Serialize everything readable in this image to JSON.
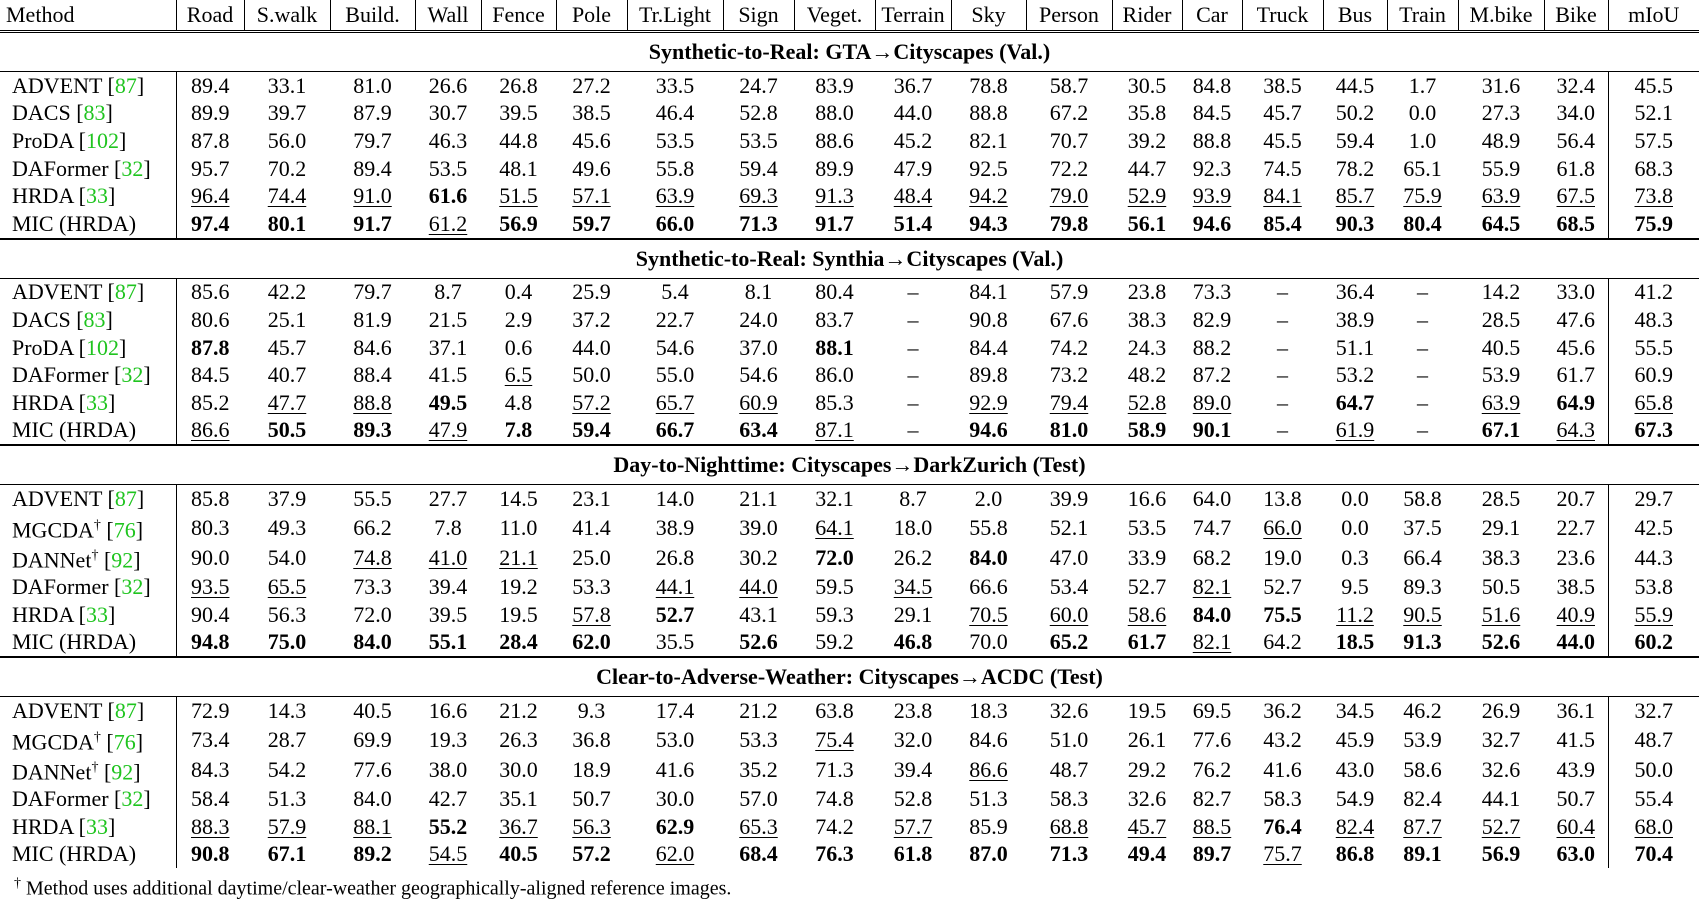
{
  "columns": [
    "Method",
    "Road",
    "S.walk",
    "Build.",
    "Wall",
    "Fence",
    "Pole",
    "Tr.Light",
    "Sign",
    "Veget.",
    "Terrain",
    "Sky",
    "Person",
    "Rider",
    "Car",
    "Truck",
    "Bus",
    "Train",
    "M.bike",
    "Bike",
    "mIoU"
  ],
  "colors": {
    "citation": "#1fc41f",
    "text": "#000000"
  },
  "sections": [
    {
      "title": "Synthetic-to-Real: GTA→Cityscapes (Val.)",
      "rows": [
        {
          "method": "ADVENT",
          "dagger": "",
          "ref": "87",
          "values": [
            "89.4",
            "33.1",
            "81.0",
            "26.6",
            "26.8",
            "27.2",
            "33.5",
            "24.7",
            "83.9",
            "36.7",
            "78.8",
            "58.7",
            "30.5",
            "84.8",
            "38.5",
            "44.5",
            "1.7",
            "31.6",
            "32.4",
            "45.5"
          ],
          "bold": [],
          "underline": []
        },
        {
          "method": "DACS",
          "dagger": "",
          "ref": "83",
          "values": [
            "89.9",
            "39.7",
            "87.9",
            "30.7",
            "39.5",
            "38.5",
            "46.4",
            "52.8",
            "88.0",
            "44.0",
            "88.8",
            "67.2",
            "35.8",
            "84.5",
            "45.7",
            "50.2",
            "0.0",
            "27.3",
            "34.0",
            "52.1"
          ],
          "bold": [],
          "underline": []
        },
        {
          "method": "ProDA",
          "dagger": "",
          "ref": "102",
          "values": [
            "87.8",
            "56.0",
            "79.7",
            "46.3",
            "44.8",
            "45.6",
            "53.5",
            "53.5",
            "88.6",
            "45.2",
            "82.1",
            "70.7",
            "39.2",
            "88.8",
            "45.5",
            "59.4",
            "1.0",
            "48.9",
            "56.4",
            "57.5"
          ],
          "bold": [],
          "underline": []
        },
        {
          "method": "DAFormer",
          "dagger": "",
          "ref": "32",
          "values": [
            "95.7",
            "70.2",
            "89.4",
            "53.5",
            "48.1",
            "49.6",
            "55.8",
            "59.4",
            "89.9",
            "47.9",
            "92.5",
            "72.2",
            "44.7",
            "92.3",
            "74.5",
            "78.2",
            "65.1",
            "55.9",
            "61.8",
            "68.3"
          ],
          "bold": [],
          "underline": []
        },
        {
          "method": "HRDA",
          "dagger": "",
          "ref": "33",
          "values": [
            "96.4",
            "74.4",
            "91.0",
            "61.6",
            "51.5",
            "57.1",
            "63.9",
            "69.3",
            "91.3",
            "48.4",
            "94.2",
            "79.0",
            "52.9",
            "93.9",
            "84.1",
            "85.7",
            "75.9",
            "63.9",
            "67.5",
            "73.8"
          ],
          "bold": [
            3
          ],
          "underline": [
            0,
            1,
            2,
            4,
            5,
            6,
            7,
            8,
            9,
            10,
            11,
            12,
            13,
            14,
            15,
            16,
            17,
            18,
            19
          ]
        },
        {
          "method": "MIC (HRDA)",
          "dagger": "",
          "ref": "",
          "values": [
            "97.4",
            "80.1",
            "91.7",
            "61.2",
            "56.9",
            "59.7",
            "66.0",
            "71.3",
            "91.7",
            "51.4",
            "94.3",
            "79.8",
            "56.1",
            "94.6",
            "85.4",
            "90.3",
            "80.4",
            "64.5",
            "68.5",
            "75.9"
          ],
          "bold": [
            0,
            1,
            2,
            4,
            5,
            6,
            7,
            8,
            9,
            10,
            11,
            12,
            13,
            14,
            15,
            16,
            17,
            18,
            19
          ],
          "underline": [
            3
          ]
        }
      ]
    },
    {
      "title": "Synthetic-to-Real: Synthia→Cityscapes (Val.)",
      "rows": [
        {
          "method": "ADVENT",
          "dagger": "",
          "ref": "87",
          "values": [
            "85.6",
            "42.2",
            "79.7",
            "8.7",
            "0.4",
            "25.9",
            "5.4",
            "8.1",
            "80.4",
            "–",
            "84.1",
            "57.9",
            "23.8",
            "73.3",
            "–",
            "36.4",
            "–",
            "14.2",
            "33.0",
            "41.2"
          ],
          "bold": [],
          "underline": []
        },
        {
          "method": "DACS",
          "dagger": "",
          "ref": "83",
          "values": [
            "80.6",
            "25.1",
            "81.9",
            "21.5",
            "2.9",
            "37.2",
            "22.7",
            "24.0",
            "83.7",
            "–",
            "90.8",
            "67.6",
            "38.3",
            "82.9",
            "–",
            "38.9",
            "–",
            "28.5",
            "47.6",
            "48.3"
          ],
          "bold": [],
          "underline": []
        },
        {
          "method": "ProDA",
          "dagger": "",
          "ref": "102",
          "values": [
            "87.8",
            "45.7",
            "84.6",
            "37.1",
            "0.6",
            "44.0",
            "54.6",
            "37.0",
            "88.1",
            "–",
            "84.4",
            "74.2",
            "24.3",
            "88.2",
            "–",
            "51.1",
            "–",
            "40.5",
            "45.6",
            "55.5"
          ],
          "bold": [
            0,
            8
          ],
          "underline": []
        },
        {
          "method": "DAFormer",
          "dagger": "",
          "ref": "32",
          "values": [
            "84.5",
            "40.7",
            "88.4",
            "41.5",
            "6.5",
            "50.0",
            "55.0",
            "54.6",
            "86.0",
            "–",
            "89.8",
            "73.2",
            "48.2",
            "87.2",
            "–",
            "53.2",
            "–",
            "53.9",
            "61.7",
            "60.9"
          ],
          "bold": [],
          "underline": [
            4
          ]
        },
        {
          "method": "HRDA",
          "dagger": "",
          "ref": "33",
          "values": [
            "85.2",
            "47.7",
            "88.8",
            "49.5",
            "4.8",
            "57.2",
            "65.7",
            "60.9",
            "85.3",
            "–",
            "92.9",
            "79.4",
            "52.8",
            "89.0",
            "–",
            "64.7",
            "–",
            "63.9",
            "64.9",
            "65.8"
          ],
          "bold": [
            3,
            15,
            18
          ],
          "underline": [
            1,
            2,
            5,
            6,
            7,
            10,
            11,
            12,
            13,
            17,
            19
          ]
        },
        {
          "method": "MIC (HRDA)",
          "dagger": "",
          "ref": "",
          "values": [
            "86.6",
            "50.5",
            "89.3",
            "47.9",
            "7.8",
            "59.4",
            "66.7",
            "63.4",
            "87.1",
            "–",
            "94.6",
            "81.0",
            "58.9",
            "90.1",
            "–",
            "61.9",
            "–",
            "67.1",
            "64.3",
            "67.3"
          ],
          "bold": [
            1,
            2,
            4,
            5,
            6,
            7,
            10,
            11,
            12,
            13,
            17,
            19
          ],
          "underline": [
            0,
            3,
            8,
            15,
            18
          ]
        }
      ]
    },
    {
      "title": "Day-to-Nighttime: Cityscapes→DarkZurich (Test)",
      "rows": [
        {
          "method": "ADVENT",
          "dagger": "",
          "ref": "87",
          "values": [
            "85.8",
            "37.9",
            "55.5",
            "27.7",
            "14.5",
            "23.1",
            "14.0",
            "21.1",
            "32.1",
            "8.7",
            "2.0",
            "39.9",
            "16.6",
            "64.0",
            "13.8",
            "0.0",
            "58.8",
            "28.5",
            "20.7",
            "29.7"
          ],
          "bold": [],
          "underline": []
        },
        {
          "method": "MGCDA",
          "dagger": "†",
          "ref": "76",
          "values": [
            "80.3",
            "49.3",
            "66.2",
            "7.8",
            "11.0",
            "41.4",
            "38.9",
            "39.0",
            "64.1",
            "18.0",
            "55.8",
            "52.1",
            "53.5",
            "74.7",
            "66.0",
            "0.0",
            "37.5",
            "29.1",
            "22.7",
            "42.5"
          ],
          "bold": [],
          "underline": [
            8,
            14
          ]
        },
        {
          "method": "DANNet",
          "dagger": "†",
          "ref": "92",
          "values": [
            "90.0",
            "54.0",
            "74.8",
            "41.0",
            "21.1",
            "25.0",
            "26.8",
            "30.2",
            "72.0",
            "26.2",
            "84.0",
            "47.0",
            "33.9",
            "68.2",
            "19.0",
            "0.3",
            "66.4",
            "38.3",
            "23.6",
            "44.3"
          ],
          "bold": [
            8,
            10
          ],
          "underline": [
            2,
            3,
            4
          ]
        },
        {
          "method": "DAFormer",
          "dagger": "",
          "ref": "32",
          "values": [
            "93.5",
            "65.5",
            "73.3",
            "39.4",
            "19.2",
            "53.3",
            "44.1",
            "44.0",
            "59.5",
            "34.5",
            "66.6",
            "53.4",
            "52.7",
            "82.1",
            "52.7",
            "9.5",
            "89.3",
            "50.5",
            "38.5",
            "53.8"
          ],
          "bold": [],
          "underline": [
            0,
            1,
            6,
            7,
            9,
            13
          ]
        },
        {
          "method": "HRDA",
          "dagger": "",
          "ref": "33",
          "values": [
            "90.4",
            "56.3",
            "72.0",
            "39.5",
            "19.5",
            "57.8",
            "52.7",
            "43.1",
            "59.3",
            "29.1",
            "70.5",
            "60.0",
            "58.6",
            "84.0",
            "75.5",
            "11.2",
            "90.5",
            "51.6",
            "40.9",
            "55.9"
          ],
          "bold": [
            6,
            13,
            14
          ],
          "underline": [
            5,
            10,
            11,
            12,
            15,
            16,
            17,
            18,
            19
          ]
        },
        {
          "method": "MIC (HRDA)",
          "dagger": "",
          "ref": "",
          "values": [
            "94.8",
            "75.0",
            "84.0",
            "55.1",
            "28.4",
            "62.0",
            "35.5",
            "52.6",
            "59.2",
            "46.8",
            "70.0",
            "65.2",
            "61.7",
            "82.1",
            "64.2",
            "18.5",
            "91.3",
            "52.6",
            "44.0",
            "60.2"
          ],
          "bold": [
            0,
            1,
            2,
            3,
            4,
            5,
            7,
            9,
            11,
            12,
            15,
            16,
            17,
            18,
            19
          ],
          "underline": [
            13
          ]
        }
      ]
    },
    {
      "title": "Clear-to-Adverse-Weather: Cityscapes→ACDC (Test)",
      "rows": [
        {
          "method": "ADVENT",
          "dagger": "",
          "ref": "87",
          "values": [
            "72.9",
            "14.3",
            "40.5",
            "16.6",
            "21.2",
            "9.3",
            "17.4",
            "21.2",
            "63.8",
            "23.8",
            "18.3",
            "32.6",
            "19.5",
            "69.5",
            "36.2",
            "34.5",
            "46.2",
            "26.9",
            "36.1",
            "32.7"
          ],
          "bold": [],
          "underline": []
        },
        {
          "method": "MGCDA",
          "dagger": "†",
          "ref": "76",
          "values": [
            "73.4",
            "28.7",
            "69.9",
            "19.3",
            "26.3",
            "36.8",
            "53.0",
            "53.3",
            "75.4",
            "32.0",
            "84.6",
            "51.0",
            "26.1",
            "77.6",
            "43.2",
            "45.9",
            "53.9",
            "32.7",
            "41.5",
            "48.7"
          ],
          "bold": [],
          "underline": [
            8
          ]
        },
        {
          "method": "DANNet",
          "dagger": "†",
          "ref": "92",
          "values": [
            "84.3",
            "54.2",
            "77.6",
            "38.0",
            "30.0",
            "18.9",
            "41.6",
            "35.2",
            "71.3",
            "39.4",
            "86.6",
            "48.7",
            "29.2",
            "76.2",
            "41.6",
            "43.0",
            "58.6",
            "32.6",
            "43.9",
            "50.0"
          ],
          "bold": [],
          "underline": [
            10
          ]
        },
        {
          "method": "DAFormer",
          "dagger": "",
          "ref": "32",
          "values": [
            "58.4",
            "51.3",
            "84.0",
            "42.7",
            "35.1",
            "50.7",
            "30.0",
            "57.0",
            "74.8",
            "52.8",
            "51.3",
            "58.3",
            "32.6",
            "82.7",
            "58.3",
            "54.9",
            "82.4",
            "44.1",
            "50.7",
            "55.4"
          ],
          "bold": [],
          "underline": []
        },
        {
          "method": "HRDA",
          "dagger": "",
          "ref": "33",
          "values": [
            "88.3",
            "57.9",
            "88.1",
            "55.2",
            "36.7",
            "56.3",
            "62.9",
            "65.3",
            "74.2",
            "57.7",
            "85.9",
            "68.8",
            "45.7",
            "88.5",
            "76.4",
            "82.4",
            "87.7",
            "52.7",
            "60.4",
            "68.0"
          ],
          "bold": [
            3,
            6,
            14
          ],
          "underline": [
            0,
            1,
            2,
            4,
            5,
            7,
            9,
            11,
            12,
            13,
            15,
            16,
            17,
            18,
            19
          ]
        },
        {
          "method": "MIC (HRDA)",
          "dagger": "",
          "ref": "",
          "values": [
            "90.8",
            "67.1",
            "89.2",
            "54.5",
            "40.5",
            "57.2",
            "62.0",
            "68.4",
            "76.3",
            "61.8",
            "87.0",
            "71.3",
            "49.4",
            "89.7",
            "75.7",
            "86.8",
            "89.1",
            "56.9",
            "63.0",
            "70.4"
          ],
          "bold": [
            0,
            1,
            2,
            4,
            5,
            7,
            8,
            9,
            10,
            11,
            12,
            13,
            15,
            16,
            17,
            18,
            19
          ],
          "underline": [
            3,
            6,
            14
          ]
        }
      ]
    }
  ],
  "footnote": {
    "mark": "†",
    "text": " Method uses additional daytime/clear-weather geographically-aligned reference images."
  }
}
